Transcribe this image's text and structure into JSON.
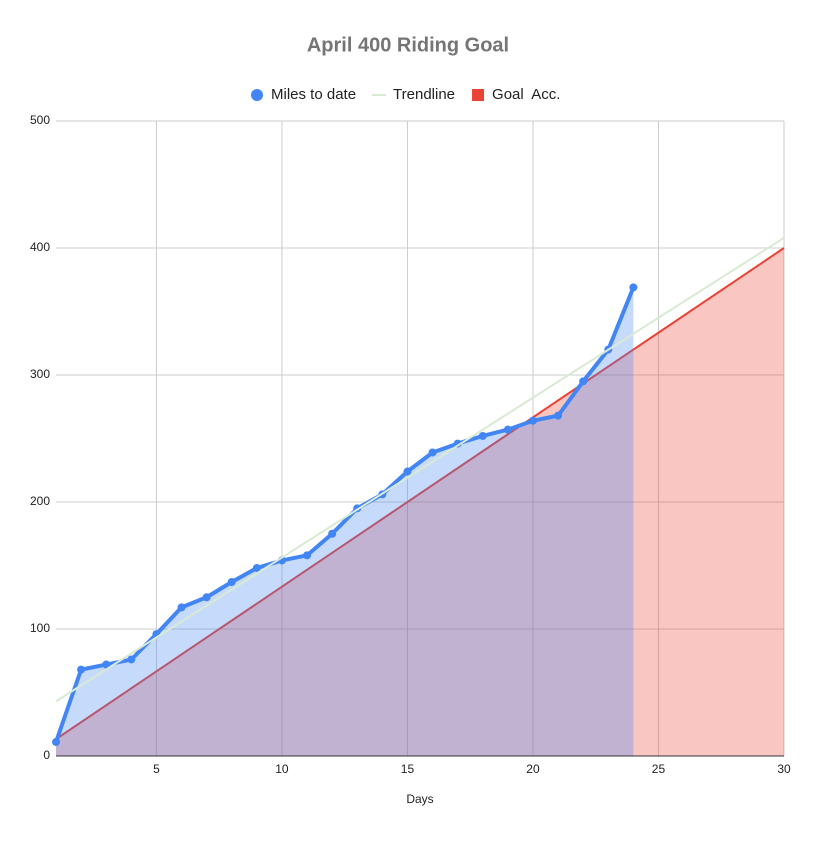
{
  "chart_data": {
    "type": "line",
    "title": "April 400 Riding Goal",
    "x_label": "Days",
    "xlim": [
      1,
      30
    ],
    "xticks": [
      5,
      10,
      15,
      20,
      25,
      30
    ],
    "ylim": [
      0,
      500
    ],
    "yticks": [
      0,
      100,
      200,
      300,
      400,
      500
    ],
    "grid": true,
    "legend": "top",
    "series": [
      {
        "name": "Miles to date",
        "color": "#4285f4",
        "area": true,
        "markers": true,
        "x": [
          1,
          2,
          3,
          4,
          5,
          6,
          7,
          8,
          9,
          10,
          11,
          12,
          13,
          14,
          15,
          16,
          17,
          18,
          19,
          20,
          21,
          22,
          23,
          24
        ],
        "values": [
          11,
          68,
          72,
          76,
          96,
          117,
          125,
          137,
          148,
          154,
          158,
          175,
          195,
          206,
          224,
          239,
          246,
          252,
          257,
          264,
          268,
          295,
          320,
          369
        ]
      },
      {
        "name": "Trendline",
        "color": "#d9ead3",
        "area": false,
        "markers": false,
        "x": [
          1,
          30
        ],
        "values": [
          43,
          408
        ]
      },
      {
        "name": "Goal  Acc.",
        "color": "#ea4335",
        "area": true,
        "markers": false,
        "x": [
          1,
          30
        ],
        "values": [
          13.3,
          400
        ]
      }
    ]
  }
}
